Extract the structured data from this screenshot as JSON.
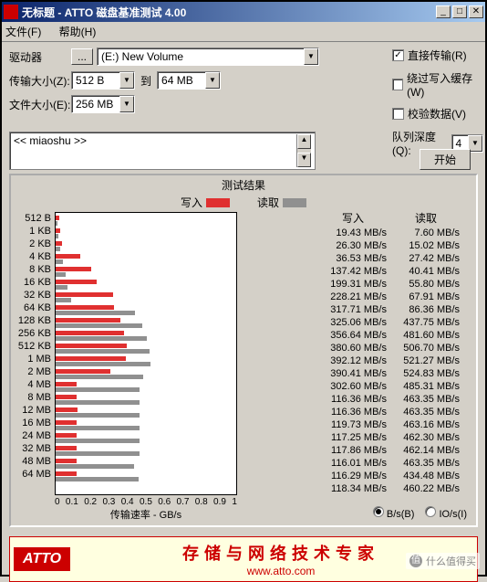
{
  "window": {
    "title": "无标题 - ATTO 磁盘基准测试 4.00"
  },
  "menu": {
    "file": "文件(F)",
    "help": "帮助(H)"
  },
  "labels": {
    "drive": "驱动器",
    "transfer_size": "传输大小(Z):",
    "file_size": "文件大小(E):",
    "to": "到"
  },
  "fields": {
    "drive_btn": "...",
    "drive_value": "(E:) New Volume",
    "transfer_min": "512 B",
    "transfer_max": "64 MB",
    "file_size": "256 MB",
    "description": "<< miaoshu >>"
  },
  "options": {
    "direct_io": {
      "label": "直接传输(R)",
      "checked": true
    },
    "bypass_cache": {
      "label": "绕过写入缓存(W)",
      "checked": false
    },
    "verify_data": {
      "label": "校验数据(V)",
      "checked": false
    },
    "queue_depth_label": "队列深度(Q):",
    "queue_depth_value": "4"
  },
  "buttons": {
    "start": "开始"
  },
  "results": {
    "title": "测试结果",
    "write_label": "写入",
    "read_label": "读取",
    "write_color": "#e03030",
    "read_color": "#909090",
    "xaxis_label": "传输速率 - GB/s",
    "xlim_max_gbps": 1.0,
    "xticks": [
      "0",
      "0.1",
      "0.2",
      "0.3",
      "0.4",
      "0.5",
      "0.6",
      "0.7",
      "0.8",
      "0.9",
      "1"
    ],
    "speed_hdr_write": "写入",
    "speed_hdr_read": "读取",
    "unit_bps": "B/s(B)",
    "unit_iops": "IO/s(I)",
    "unit_selected": "bps",
    "rows": [
      {
        "size": "512 B",
        "write_mbps": 19.43,
        "read_mbps": 7.6
      },
      {
        "size": "1 KB",
        "write_mbps": 26.3,
        "read_mbps": 15.02
      },
      {
        "size": "2 KB",
        "write_mbps": 36.53,
        "read_mbps": 27.42
      },
      {
        "size": "4 KB",
        "write_mbps": 137.42,
        "read_mbps": 40.41
      },
      {
        "size": "8 KB",
        "write_mbps": 199.31,
        "read_mbps": 55.8
      },
      {
        "size": "16 KB",
        "write_mbps": 228.21,
        "read_mbps": 67.91
      },
      {
        "size": "32 KB",
        "write_mbps": 317.71,
        "read_mbps": 86.36
      },
      {
        "size": "64 KB",
        "write_mbps": 325.06,
        "read_mbps": 437.75
      },
      {
        "size": "128 KB",
        "write_mbps": 356.64,
        "read_mbps": 481.6
      },
      {
        "size": "256 KB",
        "write_mbps": 380.6,
        "read_mbps": 506.7
      },
      {
        "size": "512 KB",
        "write_mbps": 392.12,
        "read_mbps": 521.27
      },
      {
        "size": "1 MB",
        "write_mbps": 390.41,
        "read_mbps": 524.83
      },
      {
        "size": "2 MB",
        "write_mbps": 302.6,
        "read_mbps": 485.31
      },
      {
        "size": "4 MB",
        "write_mbps": 116.36,
        "read_mbps": 463.35
      },
      {
        "size": "8 MB",
        "write_mbps": 116.36,
        "read_mbps": 463.35
      },
      {
        "size": "12 MB",
        "write_mbps": 119.73,
        "read_mbps": 463.16
      },
      {
        "size": "16 MB",
        "write_mbps": 117.25,
        "read_mbps": 462.3
      },
      {
        "size": "24 MB",
        "write_mbps": 117.86,
        "read_mbps": 462.14
      },
      {
        "size": "32 MB",
        "write_mbps": 116.01,
        "read_mbps": 463.35
      },
      {
        "size": "48 MB",
        "write_mbps": 116.29,
        "read_mbps": 434.48
      },
      {
        "size": "64 MB",
        "write_mbps": 118.34,
        "read_mbps": 460.22
      }
    ]
  },
  "footer": {
    "logo": "ATTO",
    "tagline": "存储与网络技术专家",
    "url": "www.atto.com"
  },
  "watermark": "什么值得买"
}
